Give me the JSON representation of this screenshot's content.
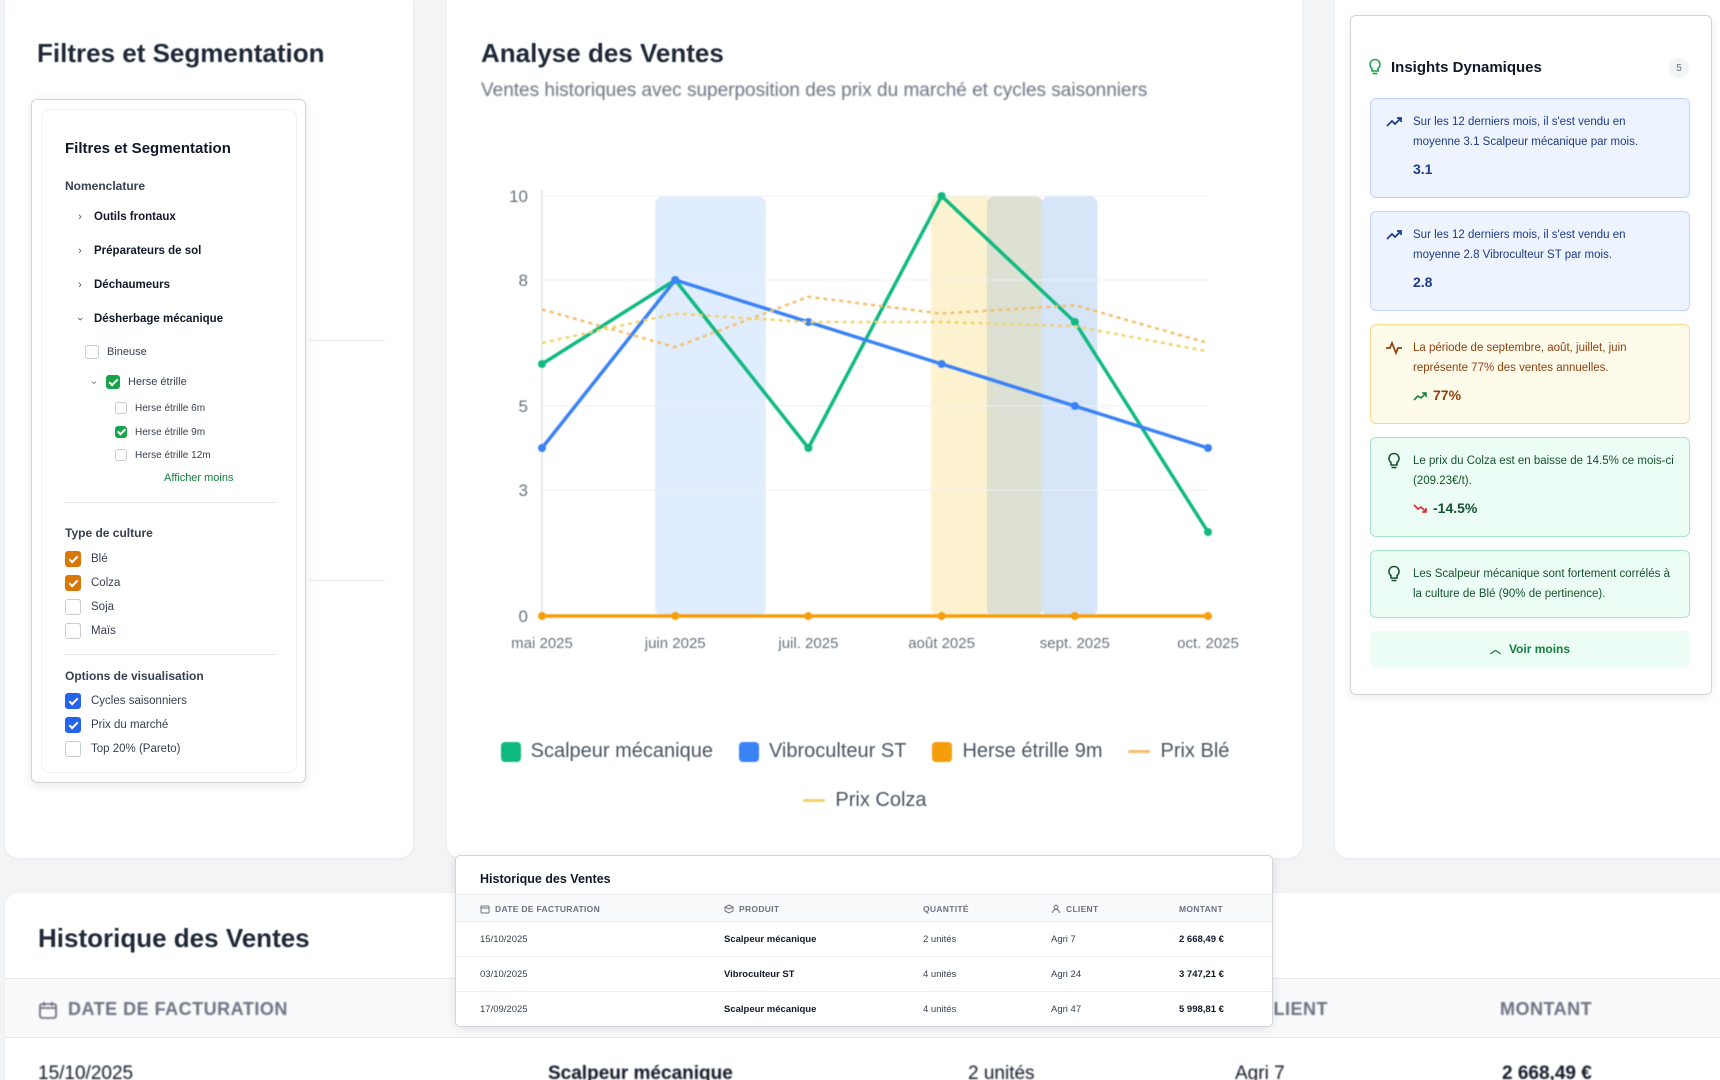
{
  "filters": {
    "bg_title": "Filtres et Segmentation",
    "title": "Filtres et Segmentation",
    "nomenclature_label": "Nomenclature",
    "categories": [
      {
        "label": "Outils frontaux",
        "expanded": false
      },
      {
        "label": "Préparateurs de sol",
        "expanded": false
      },
      {
        "label": "Déchaumeurs",
        "expanded": false
      },
      {
        "label": "Désherbage mécanique",
        "expanded": true
      }
    ],
    "bineuse": {
      "label": "Bineuse",
      "checked": false
    },
    "herse": {
      "label": "Herse étrille",
      "checked": true
    },
    "herse_children": [
      {
        "label": "Herse étrille 6m",
        "checked": false
      },
      {
        "label": "Herse étrille 9m",
        "checked": true
      },
      {
        "label": "Herse étrille 12m",
        "checked": false
      }
    ],
    "show_less": "Afficher moins",
    "culture_label": "Type de culture",
    "cultures": [
      {
        "label": "Blé",
        "checked": true
      },
      {
        "label": "Colza",
        "checked": true
      },
      {
        "label": "Soja",
        "checked": false
      },
      {
        "label": "Maïs",
        "checked": false
      }
    ],
    "viz_label": "Options de visualisation",
    "viz_options": [
      {
        "label": "Cycles saisonniers",
        "checked": true
      },
      {
        "label": "Prix du marché",
        "checked": true
      },
      {
        "label": "Top 20% (Pareto)",
        "checked": false
      }
    ]
  },
  "analysis": {
    "title": "Analyse des Ventes",
    "subtitle": "Ventes historiques avec superposition des prix du marché et cycles saisonniers"
  },
  "chart_data": {
    "type": "line",
    "x": [
      "mai 2025",
      "juin 2025",
      "juil. 2025",
      "août 2025",
      "sept. 2025",
      "oct. 2025"
    ],
    "ylim": [
      0,
      10
    ],
    "yticks": [
      "0",
      "3",
      "5",
      "8",
      "10"
    ],
    "series": [
      {
        "name": "Scalpeur mécanique",
        "kind": "solid",
        "color": "#10b981",
        "values": [
          6,
          8,
          4,
          10,
          7,
          2
        ]
      },
      {
        "name": "Vibroculteur ST",
        "kind": "solid",
        "color": "#3b82f6",
        "values": [
          4,
          8,
          7,
          6,
          5,
          4
        ]
      },
      {
        "name": "Herse étrille 9m",
        "kind": "solid",
        "color": "#f59e0b",
        "values": [
          0,
          0,
          0,
          0,
          0,
          0
        ]
      },
      {
        "name": "Prix Blé",
        "kind": "dashed",
        "color": "#f5be6a",
        "values": [
          7.3,
          6.4,
          7.6,
          7.2,
          7.4,
          6.5
        ]
      },
      {
        "name": "Prix Colza",
        "kind": "dashed",
        "color": "#f3d26f",
        "values": [
          6.5,
          7.2,
          7.0,
          7.0,
          6.9,
          6.3
        ]
      }
    ],
    "seasonal_bands": [
      {
        "from": "juin 2025",
        "color": "#dbeafe"
      },
      {
        "from": "août 2025",
        "color": "#fdf0c8"
      },
      {
        "from": "août 2025",
        "color": "#d6dccd"
      },
      {
        "from": "sept. 2025",
        "color": "#cfe1f7"
      }
    ],
    "legend": [
      "Scalpeur mécanique",
      "Vibroculteur ST",
      "Herse étrille 9m",
      "Prix Blé",
      "Prix Colza"
    ]
  },
  "insights": {
    "title": "Insights Dynamiques",
    "count": "5",
    "cards": [
      {
        "style": "blue",
        "icon": "trend-up-icon",
        "text": "Sur les 12 derniers mois, il s'est vendu en moyenne 3.1 Scalpeur mécanique par mois.",
        "value": "3.1"
      },
      {
        "style": "blue",
        "icon": "trend-up-icon",
        "text": "Sur les 12 derniers mois, il s'est vendu en moyenne 2.8 Vibroculteur ST par mois.",
        "value": "2.8"
      },
      {
        "style": "yellow",
        "icon": "activity-icon",
        "text": "La période de septembre, août, juillet, juin représente 77% des ventes annuelles.",
        "value": "77%"
      },
      {
        "style": "green",
        "icon": "lightbulb-icon",
        "text": "Le prix du Colza est en baisse de 14.5% ce mois-ci (209.23€/t).",
        "value": "-14.5%"
      },
      {
        "style": "green",
        "icon": "lightbulb-icon",
        "text": "Les Scalpeur mécanique sont fortement corrélés à la culture de Blé (90% de pertinence).",
        "value": ""
      }
    ],
    "toggle": "Voir moins"
  },
  "history": {
    "bg_title": "Historique des Ventes",
    "title": "Historique des Ventes",
    "columns": [
      "DATE DE FACTURATION",
      "PRODUIT",
      "QUANTITÉ",
      "CLIENT",
      "MONTANT"
    ],
    "rows": [
      [
        "15/10/2025",
        "Scalpeur mécanique",
        "2 unités",
        "Agri 7",
        "2 668,49 €"
      ],
      [
        "03/10/2025",
        "Vibroculteur ST",
        "4 unités",
        "Agri 24",
        "3 747,21 €"
      ],
      [
        "17/09/2025",
        "Scalpeur mécanique",
        "4 unités",
        "Agri 47",
        "5 998,81 €"
      ]
    ]
  },
  "colors": {
    "accent_green": "#15803d",
    "brand_blue": "#2563eb",
    "brand_orange": "#d97706"
  }
}
